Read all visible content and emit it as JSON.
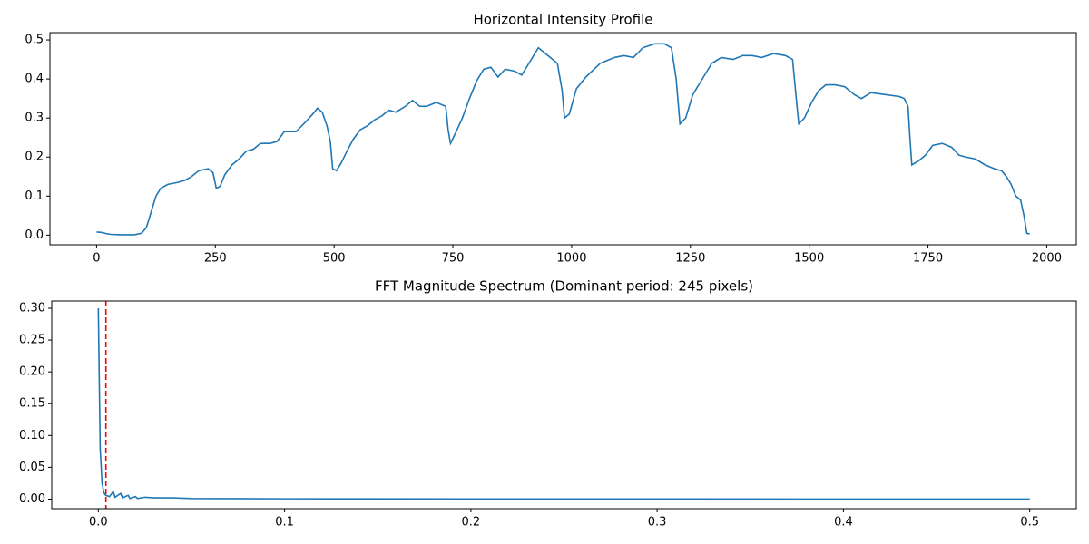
{
  "chart_data": [
    {
      "type": "line",
      "title": "Horizontal Intensity Profile",
      "x": [
        0,
        10,
        20,
        30,
        50,
        80,
        95,
        105,
        115,
        125,
        135,
        150,
        170,
        185,
        200,
        215,
        235,
        245,
        252,
        260,
        270,
        285,
        300,
        315,
        330,
        345,
        365,
        380,
        395,
        420,
        440,
        455,
        465,
        475,
        485,
        492,
        497,
        505,
        515,
        525,
        540,
        555,
        570,
        585,
        600,
        615,
        630,
        650,
        665,
        680,
        695,
        715,
        735,
        740,
        745,
        755,
        770,
        785,
        800,
        815,
        830,
        845,
        860,
        880,
        895,
        910,
        930,
        950,
        970,
        980,
        985,
        995,
        1010,
        1030,
        1060,
        1090,
        1110,
        1130,
        1150,
        1175,
        1195,
        1210,
        1220,
        1228,
        1240,
        1255,
        1275,
        1295,
        1315,
        1340,
        1360,
        1380,
        1400,
        1425,
        1450,
        1465,
        1472,
        1478,
        1490,
        1505,
        1520,
        1535,
        1555,
        1575,
        1595,
        1610,
        1630,
        1660,
        1690,
        1700,
        1708,
        1712,
        1716,
        1730,
        1745,
        1760,
        1780,
        1800,
        1815,
        1830,
        1850,
        1870,
        1890,
        1905,
        1915,
        1925,
        1935,
        1945,
        1952,
        1958,
        1964
      ],
      "series": [
        {
          "color": "#1f77b4",
          "values": [
            0.008,
            0.007,
            0.004,
            0.002,
            0.001,
            0.001,
            0.005,
            0.02,
            0.06,
            0.1,
            0.12,
            0.13,
            0.135,
            0.14,
            0.15,
            0.165,
            0.17,
            0.16,
            0.12,
            0.125,
            0.155,
            0.18,
            0.195,
            0.215,
            0.22,
            0.235,
            0.235,
            0.24,
            0.265,
            0.265,
            0.29,
            0.31,
            0.325,
            0.315,
            0.28,
            0.24,
            0.17,
            0.165,
            0.185,
            0.21,
            0.245,
            0.27,
            0.28,
            0.295,
            0.305,
            0.32,
            0.315,
            0.33,
            0.345,
            0.33,
            0.33,
            0.34,
            0.33,
            0.27,
            0.235,
            0.26,
            0.3,
            0.35,
            0.395,
            0.425,
            0.43,
            0.405,
            0.425,
            0.42,
            0.41,
            0.44,
            0.48,
            0.46,
            0.44,
            0.37,
            0.3,
            0.31,
            0.375,
            0.405,
            0.44,
            0.455,
            0.46,
            0.455,
            0.48,
            0.49,
            0.49,
            0.48,
            0.4,
            0.285,
            0.3,
            0.36,
            0.4,
            0.44,
            0.455,
            0.45,
            0.46,
            0.46,
            0.455,
            0.465,
            0.46,
            0.45,
            0.36,
            0.285,
            0.3,
            0.34,
            0.37,
            0.385,
            0.385,
            0.38,
            0.36,
            0.35,
            0.365,
            0.36,
            0.355,
            0.35,
            0.33,
            0.25,
            0.18,
            0.19,
            0.205,
            0.23,
            0.235,
            0.225,
            0.205,
            0.2,
            0.195,
            0.18,
            0.17,
            0.165,
            0.15,
            0.13,
            0.1,
            0.09,
            0.05,
            0.005,
            0.003
          ]
        }
      ],
      "xlim": [
        -98.2,
        2062.2
      ],
      "ylim": [
        -0.0247,
        0.5187
      ],
      "xticks": [
        0,
        250,
        500,
        750,
        1000,
        1250,
        1500,
        1750,
        2000
      ],
      "yticks": [
        {
          "value": 0,
          "label": "0.0"
        },
        0.1,
        0.2,
        0.3,
        0.4,
        0.5
      ]
    },
    {
      "type": "line",
      "title": "FFT Magnitude Spectrum (Dominant period: 245 pixels)",
      "x": [
        0,
        0.001,
        0.002,
        0.003,
        0.004,
        0.006,
        0.008,
        0.009,
        0.012,
        0.013,
        0.016,
        0.017,
        0.02,
        0.021,
        0.025,
        0.03,
        0.04,
        0.05,
        0.1,
        0.2,
        0.3,
        0.5
      ],
      "series": [
        {
          "color": "#1f77b4",
          "values": [
            0.3,
            0.08,
            0.025,
            0.01,
            0.006,
            0.004,
            0.012,
            0.003,
            0.009,
            0.002,
            0.006,
            0.001,
            0.004,
            0.001,
            0.003,
            0.002,
            0.002,
            0.001,
            0.0005,
            0.0003,
            0.0002,
            0.0001
          ]
        }
      ],
      "vlines": [
        {
          "x": 0.00408,
          "color": "#ff0000",
          "style": "dashed"
        }
      ],
      "xlim": [
        -0.025,
        0.525
      ],
      "ylim": [
        -0.015,
        0.3114
      ],
      "xticks": [
        {
          "value": 0,
          "label": "0.0"
        },
        0.1,
        0.2,
        0.3,
        0.4,
        0.5
      ],
      "yticks": [
        {
          "value": 0,
          "label": "0.00"
        },
        0.05,
        {
          "value": 0.1,
          "label": "0.10"
        },
        0.15,
        {
          "value": 0.2,
          "label": "0.20"
        },
        0.25,
        {
          "value": 0.3,
          "label": "0.30"
        }
      ]
    }
  ]
}
